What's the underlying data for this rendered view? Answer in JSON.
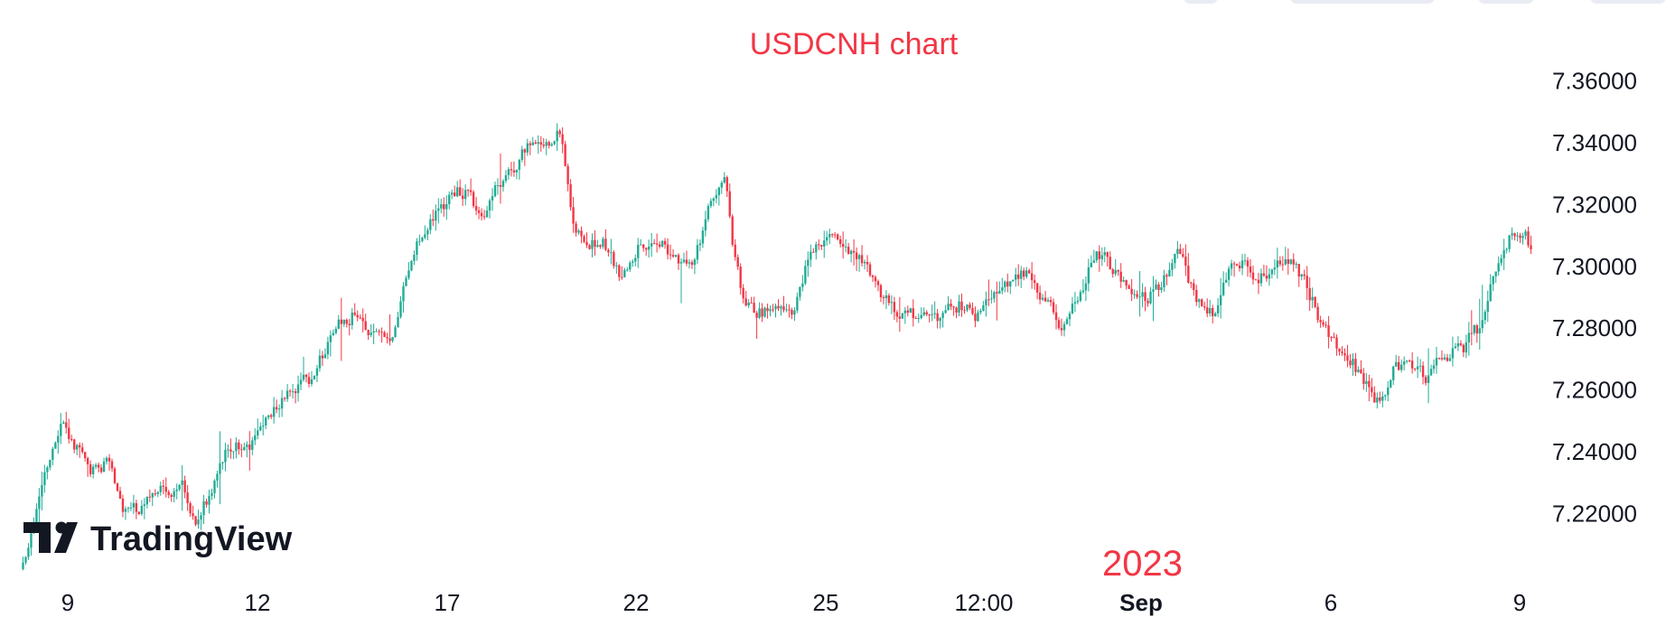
{
  "colors": {
    "up": "#22ab94",
    "down": "#f23645",
    "annotation": "#f23645",
    "axis_text": "#131722",
    "logo": "#131722"
  },
  "logo": {
    "text": "TradingView",
    "icon": "tradingview-logo-icon"
  },
  "chart_data": {
    "type": "candlestick",
    "title": "USDCNH chart",
    "annotation": "2023",
    "x_ticks": [
      {
        "label": "9",
        "bold": false
      },
      {
        "label": "12",
        "bold": false
      },
      {
        "label": "17",
        "bold": false
      },
      {
        "label": "22",
        "bold": false
      },
      {
        "label": "25",
        "bold": false
      },
      {
        "label": "12:00",
        "bold": false
      },
      {
        "label": "Sep",
        "bold": true
      },
      {
        "label": "6",
        "bold": false
      },
      {
        "label": "9",
        "bold": false
      }
    ],
    "y_ticks": [
      7.22,
      7.24,
      7.26,
      7.28,
      7.3,
      7.32,
      7.34,
      7.36
    ],
    "y_tick_labels": [
      "7.22000",
      "7.24000",
      "7.26000",
      "7.28000",
      "7.30000",
      "7.32000",
      "7.34000",
      "7.36000"
    ],
    "ylim": [
      7.2005,
      7.3745
    ],
    "grid": false,
    "price_path_anchors": [
      [
        0.0,
        7.202
      ],
      [
        0.01,
        7.228
      ],
      [
        0.025,
        7.25
      ],
      [
        0.045,
        7.233
      ],
      [
        0.055,
        7.238
      ],
      [
        0.065,
        7.222
      ],
      [
        0.075,
        7.22
      ],
      [
        0.09,
        7.227
      ],
      [
        0.105,
        7.228
      ],
      [
        0.115,
        7.218
      ],
      [
        0.12,
        7.225
      ],
      [
        0.135,
        7.243
      ],
      [
        0.145,
        7.24
      ],
      [
        0.155,
        7.245
      ],
      [
        0.165,
        7.255
      ],
      [
        0.18,
        7.26
      ],
      [
        0.19,
        7.265
      ],
      [
        0.205,
        7.28
      ],
      [
        0.22,
        7.285
      ],
      [
        0.235,
        7.278
      ],
      [
        0.245,
        7.28
      ],
      [
        0.255,
        7.3
      ],
      [
        0.275,
        7.32
      ],
      [
        0.29,
        7.325
      ],
      [
        0.305,
        7.315
      ],
      [
        0.31,
        7.325
      ],
      [
        0.32,
        7.33
      ],
      [
        0.335,
        7.34
      ],
      [
        0.345,
        7.338
      ],
      [
        0.355,
        7.345
      ],
      [
        0.365,
        7.31
      ],
      [
        0.375,
        7.305
      ],
      [
        0.385,
        7.308
      ],
      [
        0.395,
        7.295
      ],
      [
        0.405,
        7.305
      ],
      [
        0.42,
        7.31
      ],
      [
        0.43,
        7.302
      ],
      [
        0.445,
        7.305
      ],
      [
        0.46,
        7.325
      ],
      [
        0.465,
        7.33
      ],
      [
        0.47,
        7.305
      ],
      [
        0.475,
        7.29
      ],
      [
        0.49,
        7.286
      ],
      [
        0.5,
        7.29
      ],
      [
        0.51,
        7.282
      ],
      [
        0.52,
        7.305
      ],
      [
        0.535,
        7.31
      ],
      [
        0.55,
        7.305
      ],
      [
        0.56,
        7.3
      ],
      [
        0.57,
        7.29
      ],
      [
        0.585,
        7.285
      ],
      [
        0.6,
        7.283
      ],
      [
        0.615,
        7.288
      ],
      [
        0.63,
        7.285
      ],
      [
        0.645,
        7.292
      ],
      [
        0.66,
        7.298
      ],
      [
        0.675,
        7.292
      ],
      [
        0.685,
        7.28
      ],
      [
        0.7,
        7.29
      ],
      [
        0.71,
        7.305
      ],
      [
        0.72,
        7.3
      ],
      [
        0.735,
        7.29
      ],
      [
        0.75,
        7.29
      ],
      [
        0.765,
        7.305
      ],
      [
        0.77,
        7.298
      ],
      [
        0.78,
        7.286
      ],
      [
        0.79,
        7.285
      ],
      [
        0.8,
        7.3
      ],
      [
        0.81,
        7.302
      ],
      [
        0.82,
        7.295
      ],
      [
        0.83,
        7.3
      ],
      [
        0.84,
        7.3
      ],
      [
        0.85,
        7.294
      ],
      [
        0.86,
        7.28
      ],
      [
        0.87,
        7.274
      ],
      [
        0.88,
        7.268
      ],
      [
        0.89,
        7.262
      ],
      [
        0.9,
        7.255
      ],
      [
        0.91,
        7.27
      ],
      [
        0.92,
        7.268
      ],
      [
        0.93,
        7.265
      ],
      [
        0.945,
        7.272
      ],
      [
        0.955,
        7.275
      ],
      [
        0.965,
        7.28
      ],
      [
        0.975,
        7.3
      ],
      [
        0.985,
        7.31
      ],
      [
        1.0,
        7.308
      ]
    ]
  }
}
